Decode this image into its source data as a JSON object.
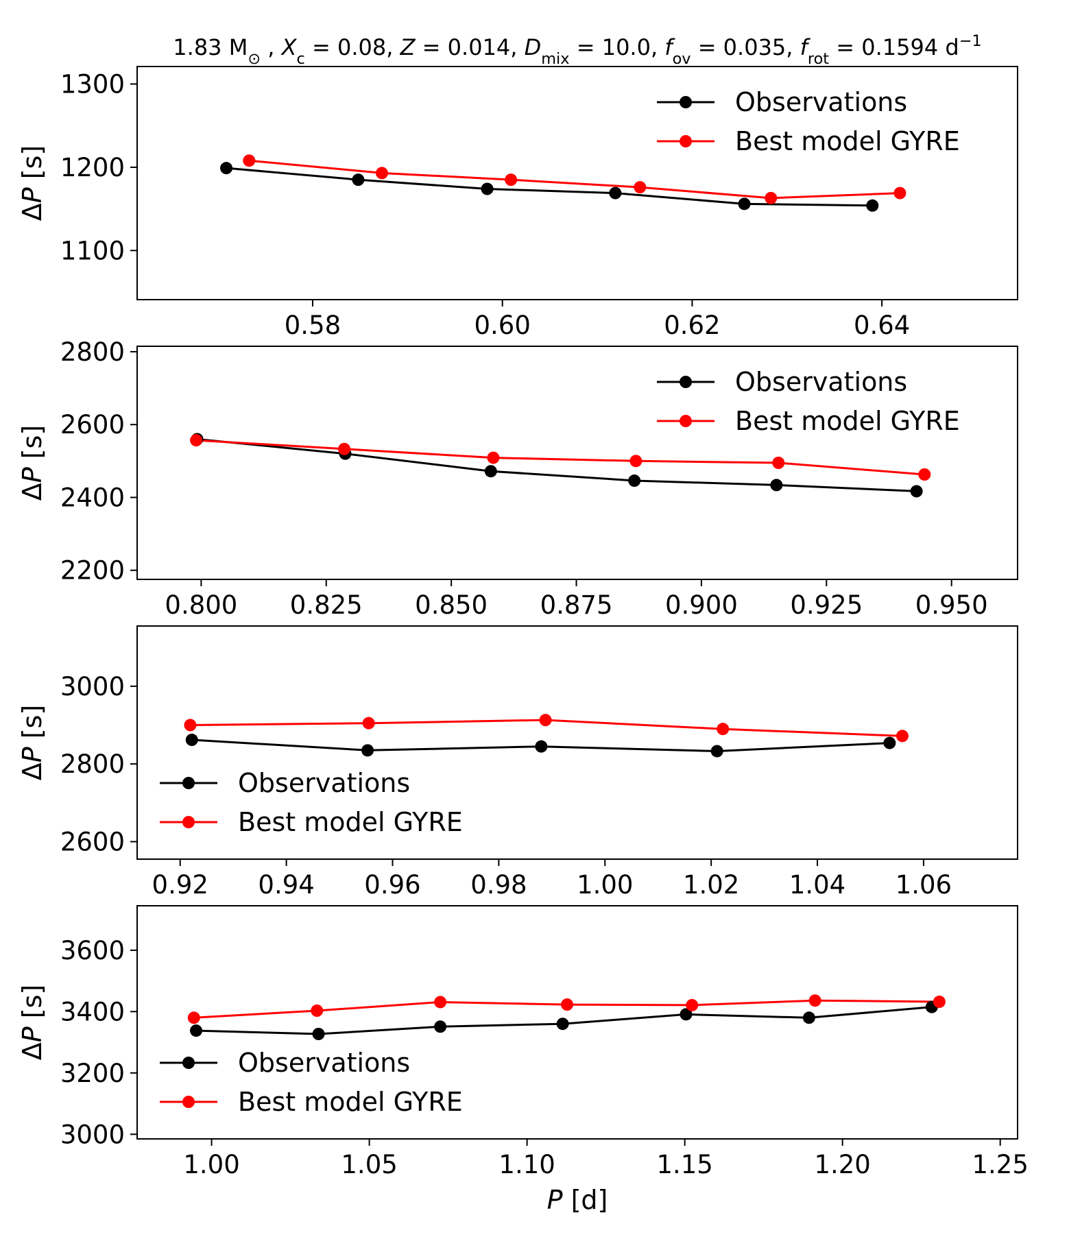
{
  "figure": {
    "title_segments": [
      {
        "t": "1.83 M",
        "i": false
      },
      {
        "t": "⊙",
        "i": false,
        "sub": true
      },
      {
        "t": " , ",
        "i": false
      },
      {
        "t": "X",
        "i": true
      },
      {
        "t": "c",
        "i": false,
        "sub": true
      },
      {
        "t": " = 0.08, ",
        "i": false
      },
      {
        "t": "Z",
        "i": true
      },
      {
        "t": " = 0.014, ",
        "i": false
      },
      {
        "t": "D",
        "i": true
      },
      {
        "t": "mix",
        "i": false,
        "sub": true
      },
      {
        "t": " = 10.0, ",
        "i": false
      },
      {
        "t": "f",
        "i": true
      },
      {
        "t": "ov",
        "i": false,
        "sub": true
      },
      {
        "t": " = 0.035, ",
        "i": false
      },
      {
        "t": "f",
        "i": true
      },
      {
        "t": "rot",
        "i": false,
        "sub": true
      },
      {
        "t": " = 0.1594 d",
        "i": false
      },
      {
        "t": "−1",
        "i": false,
        "sup": true
      }
    ],
    "xlabel_segments": [
      {
        "t": "P",
        "i": true
      },
      {
        "t": " [d]",
        "i": false
      }
    ],
    "ylabel_segments": [
      {
        "t": "Δ",
        "i": false
      },
      {
        "t": "P",
        "i": true
      },
      {
        "t": " [s]",
        "i": false
      }
    ],
    "colors": {
      "observations": "#000000",
      "model": "#ff0000",
      "axes": "#000000"
    }
  },
  "chart_data": [
    {
      "type": "line",
      "title": "1.83 M⊙ , Xc = 0.08, Z = 0.014, Dmix = 10.0, fov = 0.035, frot = 0.1594 d−1",
      "xlabel": "",
      "ylabel": "ΔP [s]",
      "xlim": [
        0.5615,
        0.6543
      ],
      "ylim": [
        1041,
        1321
      ],
      "xticks": [
        0.58,
        0.6,
        0.62,
        0.64
      ],
      "xtick_labels": [
        "0.58",
        "0.60",
        "0.62",
        "0.64"
      ],
      "yticks": [
        1100,
        1200,
        1300
      ],
      "ytick_labels": [
        "1100",
        "1200",
        "1300"
      ],
      "grid": false,
      "legend": {
        "position": "top-right",
        "entries": [
          "Observations",
          "Best model GYRE"
        ]
      },
      "series": [
        {
          "name": "Observations",
          "color": "#000000",
          "x": [
            0.5709,
            0.5848,
            0.5984,
            0.6119,
            0.6255,
            0.639
          ],
          "y": [
            1199,
            1185,
            1174,
            1169,
            1156,
            1154
          ]
        },
        {
          "name": "Best model GYRE",
          "color": "#ff0000",
          "x": [
            0.5733,
            0.5873,
            0.6009,
            0.6145,
            0.6283,
            0.6419
          ],
          "y": [
            1208,
            1193,
            1185,
            1176,
            1163,
            1169
          ]
        }
      ]
    },
    {
      "type": "line",
      "title": "",
      "xlabel": "",
      "ylabel": "ΔP [s]",
      "xlim": [
        0.7872,
        0.9632
      ],
      "ylim": [
        2175,
        2815
      ],
      "xticks": [
        0.8,
        0.825,
        0.85,
        0.875,
        0.9,
        0.925,
        0.95
      ],
      "xtick_labels": [
        "0.800",
        "0.825",
        "0.850",
        "0.875",
        "0.900",
        "0.925",
        "0.950"
      ],
      "yticks": [
        2200,
        2400,
        2600,
        2800
      ],
      "ytick_labels": [
        "2200",
        "2400",
        "2600",
        "2800"
      ],
      "grid": false,
      "legend": {
        "position": "top-right",
        "entries": [
          "Observations",
          "Best model GYRE"
        ]
      },
      "series": [
        {
          "name": "Observations",
          "color": "#000000",
          "x": [
            0.7992,
            0.8288,
            0.8579,
            0.8866,
            0.915,
            0.943
          ],
          "y": [
            2560,
            2520,
            2472,
            2446,
            2434,
            2417
          ]
        },
        {
          "name": "Best model GYRE",
          "color": "#ff0000",
          "x": [
            0.799,
            0.8286,
            0.8584,
            0.8869,
            0.9154,
            0.9446
          ],
          "y": [
            2557,
            2533,
            2509,
            2500,
            2495,
            2463
          ]
        }
      ]
    },
    {
      "type": "line",
      "title": "",
      "xlabel": "",
      "ylabel": "ΔP [s]",
      "xlim": [
        0.9119,
        1.0777
      ],
      "ylim": [
        2555,
        3155
      ],
      "xticks": [
        0.92,
        0.94,
        0.96,
        0.98,
        1.0,
        1.02,
        1.04,
        1.06
      ],
      "xtick_labels": [
        "0.92",
        "0.94",
        "0.96",
        "0.98",
        "1.00",
        "1.02",
        "1.04",
        "1.06"
      ],
      "yticks": [
        2600,
        2800,
        3000
      ],
      "ytick_labels": [
        "2600",
        "2800",
        "3000"
      ],
      "grid": false,
      "legend": {
        "position": "lower-left",
        "entries": [
          "Observations",
          "Best model GYRE"
        ]
      },
      "series": [
        {
          "name": "Observations",
          "color": "#000000",
          "x": [
            0.9222,
            0.9553,
            0.988,
            1.0211,
            1.0536
          ],
          "y": [
            2862,
            2835,
            2845,
            2833,
            2854
          ]
        },
        {
          "name": "Best model GYRE",
          "color": "#ff0000",
          "x": [
            0.9219,
            0.9555,
            0.9888,
            1.0222,
            1.056
          ],
          "y": [
            2900,
            2905,
            2913,
            2890,
            2872
          ]
        }
      ]
    },
    {
      "type": "line",
      "title": "",
      "xlabel": "P [d]",
      "ylabel": "ΔP [s]",
      "xlim": [
        0.9764,
        1.2555
      ],
      "ylim": [
        2985,
        3745
      ],
      "xticks": [
        1.0,
        1.05,
        1.1,
        1.15,
        1.2,
        1.25
      ],
      "xtick_labels": [
        "1.00",
        "1.05",
        "1.10",
        "1.15",
        "1.20",
        "1.25"
      ],
      "yticks": [
        3000,
        3200,
        3400,
        3600
      ],
      "ytick_labels": [
        "3000",
        "3200",
        "3400",
        "3600"
      ],
      "grid": false,
      "legend": {
        "position": "lower-left",
        "entries": [
          "Observations",
          "Best model GYRE"
        ]
      },
      "series": [
        {
          "name": "Observations",
          "color": "#000000",
          "x": [
            0.9951,
            1.0339,
            1.0725,
            1.1113,
            1.1504,
            1.1894,
            1.2283
          ],
          "y": [
            3338,
            3327,
            3351,
            3360,
            3391,
            3380,
            3415
          ]
        },
        {
          "name": "Best model GYRE",
          "color": "#ff0000",
          "x": [
            0.9944,
            1.0334,
            1.0725,
            1.1127,
            1.1523,
            1.1913,
            1.2307
          ],
          "y": [
            3380,
            3403,
            3431,
            3423,
            3421,
            3436,
            3432
          ]
        }
      ]
    }
  ]
}
